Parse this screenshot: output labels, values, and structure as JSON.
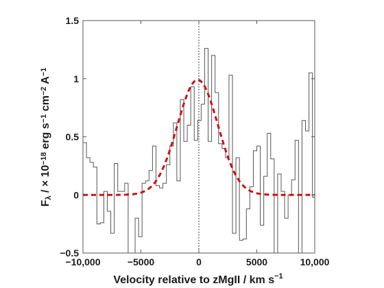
{
  "chart_data": {
    "type": "line",
    "title": "",
    "xlabel": {
      "text": "Velocity relative to zMgII / km s",
      "sup": "−1"
    },
    "ylabel": {
      "parts": [
        {
          "text": "F",
          "kind": "normal"
        },
        {
          "text": "λ",
          "kind": "sub"
        },
        {
          "text": " / × 10",
          "kind": "normal"
        },
        {
          "text": "−18",
          "kind": "sup"
        },
        {
          "text": " erg s",
          "kind": "normal"
        },
        {
          "text": "−1",
          "kind": "sup"
        },
        {
          "text": " cm",
          "kind": "normal"
        },
        {
          "text": "−2",
          "kind": "sup"
        },
        {
          "text": " A",
          "kind": "normal"
        },
        {
          "text": "−1",
          "kind": "sup"
        }
      ]
    },
    "xlim": [
      -10000,
      10000
    ],
    "ylim": [
      -0.5,
      1.5
    ],
    "xticks": [
      -10000,
      -5000,
      0,
      5000,
      10000
    ],
    "xtick_labels": [
      "−10,000",
      "−5000",
      "0",
      "5000",
      "10,000"
    ],
    "yticks": [
      -0.5,
      0,
      0.5,
      1,
      1.5
    ],
    "ytick_labels": [
      "−0.5",
      "0",
      "0.5",
      "1",
      "1.5"
    ],
    "grid": false,
    "legend": "none",
    "reference_line": {
      "x": 0,
      "style": "dotted",
      "color": "#000000"
    },
    "series": [
      {
        "kind": "step",
        "color": "#555555",
        "bin_edges": [
          -10000,
          -9700,
          -9400,
          -9100,
          -8800,
          -8500,
          -8200,
          -7900,
          -7600,
          -7300,
          -7000,
          -6700,
          -6400,
          -6100,
          -5800,
          -5500,
          -5200,
          -4900,
          -4600,
          -4300,
          -4000,
          -3700,
          -3400,
          -3100,
          -2800,
          -2500,
          -2200,
          -1900,
          -1600,
          -1300,
          -1000,
          -700,
          -400,
          -100,
          200,
          500,
          800,
          1100,
          1400,
          1700,
          2000,
          2300,
          2600,
          2900,
          3200,
          3500,
          3800,
          4100,
          4400,
          4700,
          5000,
          5300,
          5600,
          5900,
          6200,
          6500,
          6800,
          7100,
          7400,
          7700,
          8000,
          8300,
          8600,
          8900,
          9200,
          9500,
          9800,
          10000
        ],
        "values": [
          0.45,
          0.32,
          0.28,
          0.24,
          -0.25,
          -0.24,
          0.03,
          -0.14,
          -0.33,
          0.27,
          0.03,
          0.03,
          0.1,
          -0.58,
          -0.62,
          -0.2,
          -0.36,
          0.1,
          0.12,
          0.21,
          0.42,
          0.08,
          0.06,
          0.1,
          0.26,
          0.42,
          0.62,
          0.12,
          0.82,
          0.46,
          0.6,
          0.93,
          0.47,
          0.64,
          0.78,
          1.26,
          0.46,
          1.2,
          0.88,
          0.44,
          0.4,
          0.32,
          1.03,
          -0.33,
          0.32,
          -0.39,
          -0.38,
          -0.12,
          0.07,
          0.38,
          0.42,
          -0.26,
          0.16,
          0.53,
          0.31,
          -0.55,
          0.18,
          0.03,
          -0.2,
          0.0,
          0.13,
          0.47,
          -0.64,
          0.64,
          0.55,
          1.05,
          -0.02,
          -0.12
        ]
      },
      {
        "kind": "gaussian",
        "style": "dashed",
        "color": "#cc1111",
        "amplitude": 0.99,
        "center": -100,
        "sigma": 1750
      }
    ]
  }
}
